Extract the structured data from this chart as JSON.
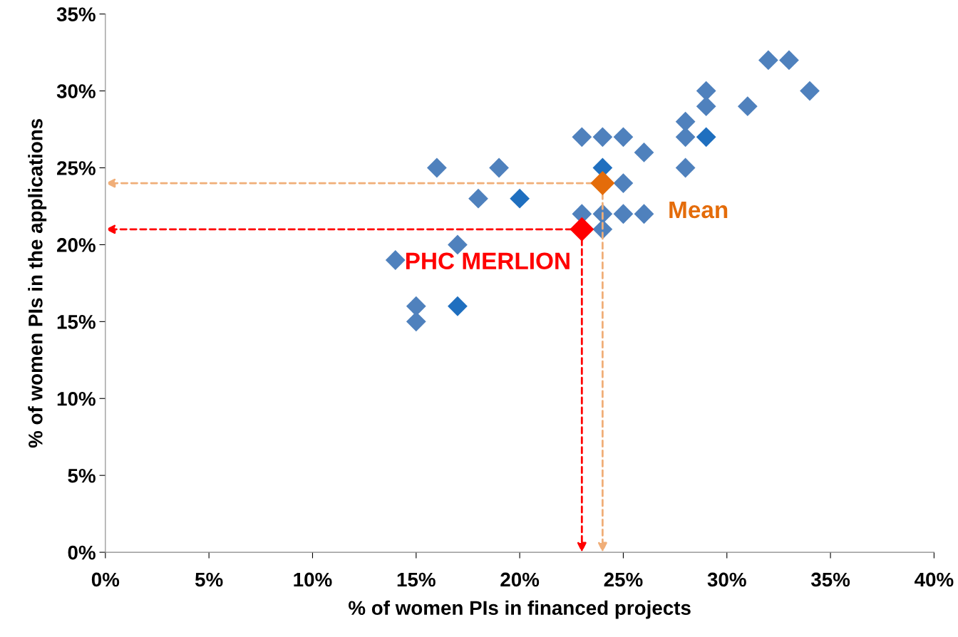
{
  "chart_data": {
    "type": "scatter",
    "xlabel": "% of women PIs in financed projects",
    "ylabel": "% of women PIs in the applications",
    "xlim": [
      0,
      40
    ],
    "ylim": [
      0,
      35
    ],
    "xticks": [
      {
        "value": 0,
        "label": "0%"
      },
      {
        "value": 5,
        "label": "5%"
      },
      {
        "value": 10,
        "label": "10%"
      },
      {
        "value": 15,
        "label": "15%"
      },
      {
        "value": 20,
        "label": "20%"
      },
      {
        "value": 25,
        "label": "25%"
      },
      {
        "value": 30,
        "label": "30%"
      },
      {
        "value": 35,
        "label": "35%"
      },
      {
        "value": 40,
        "label": "40%"
      }
    ],
    "yticks": [
      {
        "value": 0,
        "label": "0%"
      },
      {
        "value": 5,
        "label": "5%"
      },
      {
        "value": 10,
        "label": "10%"
      },
      {
        "value": 15,
        "label": "15%"
      },
      {
        "value": 20,
        "label": "20%"
      },
      {
        "value": 25,
        "label": "25%"
      },
      {
        "value": 30,
        "label": "30%"
      },
      {
        "value": 35,
        "label": "35%"
      }
    ],
    "grid": false,
    "legend": false,
    "marker": "diamond",
    "series": [
      {
        "x": [
          14,
          15,
          15,
          16,
          17,
          17,
          18,
          19,
          20,
          23,
          23,
          24,
          24,
          24,
          24,
          25,
          25,
          25,
          26,
          26,
          28,
          28,
          28,
          29,
          29,
          29,
          31,
          32,
          33,
          34
        ],
        "values": [
          19,
          16,
          15,
          25,
          20,
          16,
          23,
          25,
          23,
          27,
          22,
          27,
          25,
          22,
          21,
          27,
          24,
          22,
          26,
          22,
          28,
          27,
          25,
          30,
          29,
          27,
          29,
          32,
          32,
          30
        ],
        "color": "#4f81bd",
        "colors": [
          "#4f81bd",
          "#4f81bd",
          "#4f81bd",
          "#4f81bd",
          "#4f81bd",
          "#1f6fbf",
          "#4f81bd",
          "#4f81bd",
          "#1f6fbf",
          "#4f81bd",
          "#4f81bd",
          "#4f81bd",
          "#1f6fbf",
          "#4f81bd",
          "#4f81bd",
          "#4f81bd",
          "#4f81bd",
          "#4f81bd",
          "#4f81bd",
          "#4f81bd",
          "#4f81bd",
          "#4f81bd",
          "#4f81bd",
          "#4f81bd",
          "#4f81bd",
          "#1f6fbf",
          "#4f81bd",
          "#4f81bd",
          "#4f81bd",
          "#4f81bd"
        ]
      },
      {
        "name": "Mean",
        "x": [
          24
        ],
        "values": [
          24
        ],
        "color": "#e46c0a",
        "line_style": "dashed"
      },
      {
        "name": "PHC MERLION",
        "x": [
          23
        ],
        "values": [
          21
        ],
        "color": "#ff0000",
        "line_style": "dashed"
      }
    ]
  }
}
